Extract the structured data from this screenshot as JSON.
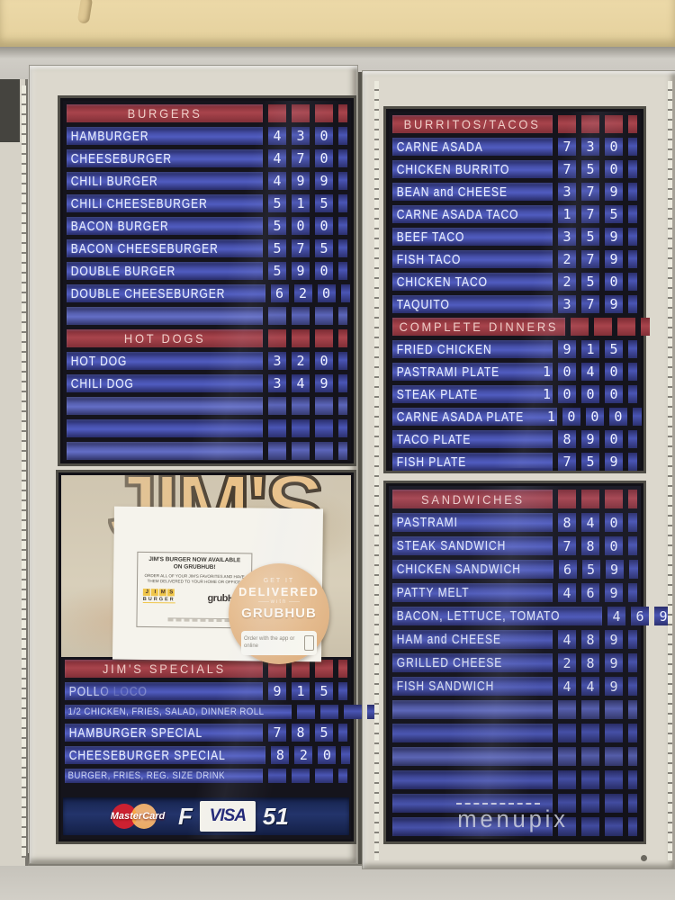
{
  "scene": {
    "watermark": "menupix"
  },
  "colors": {
    "header_red": "#a8444c",
    "row_blue": "#505cc0",
    "board_bg": "#15141c",
    "frame_gray": "#dcd8cd",
    "wall_tan": "#e9d7a6",
    "sticker_tan": "#e0b384",
    "visa_blue": "#1a1f71",
    "mastercard_red": "#cc2131",
    "mastercard_yellow": "#f4a51c"
  },
  "left_upper_board": {
    "rows": [
      {
        "type": "header",
        "label": "BURGERS"
      },
      {
        "type": "item",
        "name": "HAMBURGER",
        "price": "430"
      },
      {
        "type": "item",
        "name": "CHEESEBURGER",
        "price": "470"
      },
      {
        "type": "item",
        "name": "CHILI BURGER",
        "price": "499"
      },
      {
        "type": "item",
        "name": "CHILI CHEESEBURGER",
        "price": "515"
      },
      {
        "type": "item",
        "name": "BACON BURGER",
        "price": "500"
      },
      {
        "type": "item",
        "name": "BACON CHEESEBURGER",
        "price": "575"
      },
      {
        "type": "item",
        "name": "DOUBLE BURGER",
        "price": "590"
      },
      {
        "type": "item",
        "name": "DOUBLE CHEESEBURGER",
        "price": "620"
      },
      {
        "type": "empty"
      },
      {
        "type": "header",
        "label": "HOT DOGS"
      },
      {
        "type": "item",
        "name": "HOT DOG",
        "price": "320"
      },
      {
        "type": "item",
        "name": "CHILI DOG",
        "price": "349"
      },
      {
        "type": "empty"
      },
      {
        "type": "empty"
      },
      {
        "type": "empty"
      }
    ]
  },
  "right_upper_board": {
    "rows": [
      {
        "type": "header",
        "label": "BURRITOS/TACOS"
      },
      {
        "type": "item",
        "name": "CARNE ASADA",
        "price": "730"
      },
      {
        "type": "item",
        "name": "CHICKEN BURRITO",
        "price": "750"
      },
      {
        "type": "item",
        "name": "BEAN and CHEESE",
        "price": "379"
      },
      {
        "type": "item",
        "name": "CARNE ASADA TACO",
        "price": "175"
      },
      {
        "type": "item",
        "name": "BEEF TACO",
        "price": "359"
      },
      {
        "type": "item",
        "name": "FISH TACO",
        "price": "279"
      },
      {
        "type": "item",
        "name": "CHICKEN TACO",
        "price": "250"
      },
      {
        "type": "item",
        "name": "TAQUITO",
        "price": "379"
      },
      {
        "type": "header",
        "label": "COMPLETE DINNERS"
      },
      {
        "type": "item",
        "name": "FRIED CHICKEN",
        "price": "915"
      },
      {
        "type": "item",
        "name": "PASTRAMI PLATE",
        "price": "1040"
      },
      {
        "type": "item",
        "name": "STEAK PLATE",
        "price": "1000"
      },
      {
        "type": "item",
        "name": "CARNE ASADA PLATE",
        "price": "1000"
      },
      {
        "type": "item",
        "name": "TACO PLATE",
        "price": "890"
      },
      {
        "type": "item",
        "name": "FISH PLATE",
        "price": "759"
      }
    ]
  },
  "left_lower": {
    "logo_text": "JIM'S",
    "sign": {
      "title_line1": "JIM'S BURGER NOW AVAILABLE",
      "title_line2": "ON GRUBHUB!",
      "body": "ORDER ALL OF YOUR JIM'S FAVORITES AND HAVE THEM DELIVERED TO YOUR HOME OR OFFICE.",
      "logo_left_top": "JIMS",
      "logo_left_bottom": "BURGER",
      "logo_right": "grubHub"
    },
    "sticker": {
      "line1": "GET IT",
      "line2": "DELIVERED",
      "line3": "with",
      "line4": "GRUBHUB",
      "footer": "Order with the app or online"
    },
    "rows": [
      {
        "type": "header",
        "label": "JIM'S SPECIALS"
      },
      {
        "type": "item",
        "name": "POLLO LOCO",
        "price": "915",
        "faded": true
      },
      {
        "type": "desc",
        "name": "1/2 CHICKEN, FRIES, SALAD, DINNER ROLL"
      },
      {
        "type": "item",
        "name": "HAMBURGER SPECIAL",
        "price": "785"
      },
      {
        "type": "item",
        "name": "CHEESEBURGER SPECIAL",
        "price": "820"
      },
      {
        "type": "desc",
        "name": "BURGER, FRIES, REG. SIZE DRINK"
      }
    ],
    "payment": {
      "mastercard": "MasterCard",
      "extra_left": "F",
      "visa": "VISA",
      "extra_right": "51"
    }
  },
  "right_lower_board": {
    "rows": [
      {
        "type": "header",
        "label": "SANDWICHES"
      },
      {
        "type": "item",
        "name": "PASTRAMI",
        "price": "840"
      },
      {
        "type": "item",
        "name": "STEAK SANDWICH",
        "price": "780"
      },
      {
        "type": "item",
        "name": "CHICKEN SANDWICH",
        "price": "659"
      },
      {
        "type": "item",
        "name": "PATTY MELT",
        "price": "469"
      },
      {
        "type": "item",
        "name": "BACON, LETTUCE, TOMATO",
        "price": "469"
      },
      {
        "type": "item",
        "name": "HAM and CHEESE",
        "price": "489"
      },
      {
        "type": "item",
        "name": "GRILLED CHEESE",
        "price": "289"
      },
      {
        "type": "item",
        "name": "FISH SANDWICH",
        "price": "449"
      },
      {
        "type": "empty"
      },
      {
        "type": "empty"
      },
      {
        "type": "empty"
      },
      {
        "type": "empty"
      },
      {
        "type": "dashed"
      },
      {
        "type": "empty"
      }
    ]
  }
}
